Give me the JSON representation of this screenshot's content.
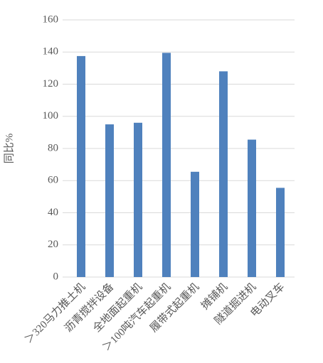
{
  "chart_data": {
    "type": "bar",
    "y_label": "同比%",
    "categories": [
      "＞320马力推土机",
      "沥青搅拌设备",
      "全地面起重机",
      "＞100吨汽车起重机",
      "履带式起重机",
      "摊铺机",
      "隧道掘进机",
      "电动叉车"
    ],
    "values": [
      137.5,
      95,
      96,
      139.5,
      65.5,
      128,
      85.5,
      55.5
    ],
    "color": "#4f81bd",
    "ylim": [
      0,
      160
    ],
    "yticks": [
      0,
      20,
      40,
      60,
      80,
      100,
      120,
      140,
      160
    ],
    "grid": true
  }
}
